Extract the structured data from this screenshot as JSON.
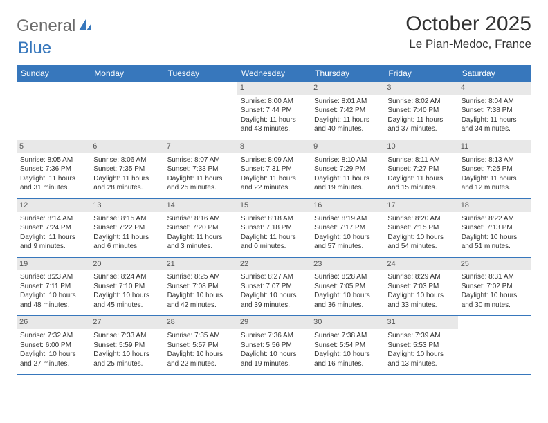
{
  "logo": {
    "part1": "General",
    "part2": "Blue"
  },
  "title": "October 2025",
  "location": "Le Pian-Medoc, France",
  "colors": {
    "header_bg": "#3777bc",
    "header_text": "#ffffff",
    "daynum_bg": "#e8e8e8",
    "daynum_text": "#555555",
    "body_text": "#333333",
    "logo_gray": "#6a6a6a",
    "logo_blue": "#3777bc",
    "page_bg": "#ffffff"
  },
  "dow": [
    "Sunday",
    "Monday",
    "Tuesday",
    "Wednesday",
    "Thursday",
    "Friday",
    "Saturday"
  ],
  "weeks": [
    [
      {
        "n": "",
        "lines": []
      },
      {
        "n": "",
        "lines": []
      },
      {
        "n": "",
        "lines": []
      },
      {
        "n": "1",
        "lines": [
          "Sunrise: 8:00 AM",
          "Sunset: 7:44 PM",
          "Daylight: 11 hours and 43 minutes."
        ]
      },
      {
        "n": "2",
        "lines": [
          "Sunrise: 8:01 AM",
          "Sunset: 7:42 PM",
          "Daylight: 11 hours and 40 minutes."
        ]
      },
      {
        "n": "3",
        "lines": [
          "Sunrise: 8:02 AM",
          "Sunset: 7:40 PM",
          "Daylight: 11 hours and 37 minutes."
        ]
      },
      {
        "n": "4",
        "lines": [
          "Sunrise: 8:04 AM",
          "Sunset: 7:38 PM",
          "Daylight: 11 hours and 34 minutes."
        ]
      }
    ],
    [
      {
        "n": "5",
        "lines": [
          "Sunrise: 8:05 AM",
          "Sunset: 7:36 PM",
          "Daylight: 11 hours and 31 minutes."
        ]
      },
      {
        "n": "6",
        "lines": [
          "Sunrise: 8:06 AM",
          "Sunset: 7:35 PM",
          "Daylight: 11 hours and 28 minutes."
        ]
      },
      {
        "n": "7",
        "lines": [
          "Sunrise: 8:07 AM",
          "Sunset: 7:33 PM",
          "Daylight: 11 hours and 25 minutes."
        ]
      },
      {
        "n": "8",
        "lines": [
          "Sunrise: 8:09 AM",
          "Sunset: 7:31 PM",
          "Daylight: 11 hours and 22 minutes."
        ]
      },
      {
        "n": "9",
        "lines": [
          "Sunrise: 8:10 AM",
          "Sunset: 7:29 PM",
          "Daylight: 11 hours and 19 minutes."
        ]
      },
      {
        "n": "10",
        "lines": [
          "Sunrise: 8:11 AM",
          "Sunset: 7:27 PM",
          "Daylight: 11 hours and 15 minutes."
        ]
      },
      {
        "n": "11",
        "lines": [
          "Sunrise: 8:13 AM",
          "Sunset: 7:25 PM",
          "Daylight: 11 hours and 12 minutes."
        ]
      }
    ],
    [
      {
        "n": "12",
        "lines": [
          "Sunrise: 8:14 AM",
          "Sunset: 7:24 PM",
          "Daylight: 11 hours and 9 minutes."
        ]
      },
      {
        "n": "13",
        "lines": [
          "Sunrise: 8:15 AM",
          "Sunset: 7:22 PM",
          "Daylight: 11 hours and 6 minutes."
        ]
      },
      {
        "n": "14",
        "lines": [
          "Sunrise: 8:16 AM",
          "Sunset: 7:20 PM",
          "Daylight: 11 hours and 3 minutes."
        ]
      },
      {
        "n": "15",
        "lines": [
          "Sunrise: 8:18 AM",
          "Sunset: 7:18 PM",
          "Daylight: 11 hours and 0 minutes."
        ]
      },
      {
        "n": "16",
        "lines": [
          "Sunrise: 8:19 AM",
          "Sunset: 7:17 PM",
          "Daylight: 10 hours and 57 minutes."
        ]
      },
      {
        "n": "17",
        "lines": [
          "Sunrise: 8:20 AM",
          "Sunset: 7:15 PM",
          "Daylight: 10 hours and 54 minutes."
        ]
      },
      {
        "n": "18",
        "lines": [
          "Sunrise: 8:22 AM",
          "Sunset: 7:13 PM",
          "Daylight: 10 hours and 51 minutes."
        ]
      }
    ],
    [
      {
        "n": "19",
        "lines": [
          "Sunrise: 8:23 AM",
          "Sunset: 7:11 PM",
          "Daylight: 10 hours and 48 minutes."
        ]
      },
      {
        "n": "20",
        "lines": [
          "Sunrise: 8:24 AM",
          "Sunset: 7:10 PM",
          "Daylight: 10 hours and 45 minutes."
        ]
      },
      {
        "n": "21",
        "lines": [
          "Sunrise: 8:25 AM",
          "Sunset: 7:08 PM",
          "Daylight: 10 hours and 42 minutes."
        ]
      },
      {
        "n": "22",
        "lines": [
          "Sunrise: 8:27 AM",
          "Sunset: 7:07 PM",
          "Daylight: 10 hours and 39 minutes."
        ]
      },
      {
        "n": "23",
        "lines": [
          "Sunrise: 8:28 AM",
          "Sunset: 7:05 PM",
          "Daylight: 10 hours and 36 minutes."
        ]
      },
      {
        "n": "24",
        "lines": [
          "Sunrise: 8:29 AM",
          "Sunset: 7:03 PM",
          "Daylight: 10 hours and 33 minutes."
        ]
      },
      {
        "n": "25",
        "lines": [
          "Sunrise: 8:31 AM",
          "Sunset: 7:02 PM",
          "Daylight: 10 hours and 30 minutes."
        ]
      }
    ],
    [
      {
        "n": "26",
        "lines": [
          "Sunrise: 7:32 AM",
          "Sunset: 6:00 PM",
          "Daylight: 10 hours and 27 minutes."
        ]
      },
      {
        "n": "27",
        "lines": [
          "Sunrise: 7:33 AM",
          "Sunset: 5:59 PM",
          "Daylight: 10 hours and 25 minutes."
        ]
      },
      {
        "n": "28",
        "lines": [
          "Sunrise: 7:35 AM",
          "Sunset: 5:57 PM",
          "Daylight: 10 hours and 22 minutes."
        ]
      },
      {
        "n": "29",
        "lines": [
          "Sunrise: 7:36 AM",
          "Sunset: 5:56 PM",
          "Daylight: 10 hours and 19 minutes."
        ]
      },
      {
        "n": "30",
        "lines": [
          "Sunrise: 7:38 AM",
          "Sunset: 5:54 PM",
          "Daylight: 10 hours and 16 minutes."
        ]
      },
      {
        "n": "31",
        "lines": [
          "Sunrise: 7:39 AM",
          "Sunset: 5:53 PM",
          "Daylight: 10 hours and 13 minutes."
        ]
      },
      {
        "n": "",
        "lines": []
      }
    ]
  ]
}
